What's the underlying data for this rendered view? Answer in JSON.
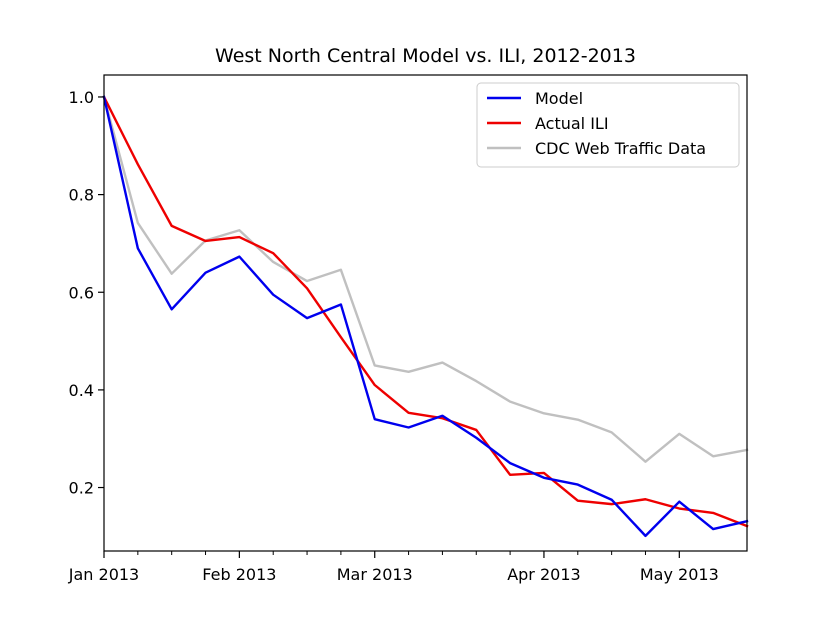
{
  "chart_data": {
    "type": "line",
    "title": "West North Central Model vs. ILI, 2012-2013",
    "xlabel": "",
    "ylabel": "",
    "ylim": [
      0.07,
      1.045
    ],
    "y_ticks": [
      0.2,
      0.4,
      0.6,
      0.8,
      1.0
    ],
    "y_tick_labels": [
      "0.2",
      "0.4",
      "0.6",
      "0.8",
      "1.0"
    ],
    "x_tick_labels": [
      "Jan 2013",
      "Feb 2013",
      "Mar 2013",
      "Apr 2013",
      "May 2013"
    ],
    "x_label_positions": [
      0,
      4,
      8,
      13,
      17
    ],
    "x_minor_ticks": [
      1,
      2,
      3,
      5,
      6,
      7,
      9,
      10,
      11,
      12,
      14,
      15,
      16
    ],
    "x": [
      0,
      1,
      2,
      3,
      4,
      5,
      6,
      7,
      8,
      9,
      10,
      11,
      12,
      13,
      14,
      15,
      16,
      17,
      18,
      19
    ],
    "xlim": [
      0,
      19
    ],
    "legend_position": "top-right",
    "series": [
      {
        "name": "Model",
        "color": "#0000ee",
        "values": [
          1.0,
          0.69,
          0.565,
          0.64,
          0.673,
          0.595,
          0.547,
          0.575,
          0.34,
          0.323,
          0.347,
          0.302,
          0.25,
          0.22,
          0.206,
          0.175,
          0.101,
          0.171,
          0.115,
          0.131
        ]
      },
      {
        "name": "Actual ILI",
        "color": "#ee0000",
        "values": [
          1.0,
          0.862,
          0.736,
          0.705,
          0.713,
          0.68,
          0.608,
          0.508,
          0.41,
          0.353,
          0.342,
          0.318,
          0.226,
          0.23,
          0.173,
          0.166,
          0.176,
          0.157,
          0.148,
          0.121
        ]
      },
      {
        "name": "CDC Web Traffic Data",
        "color": "#c0c0c0",
        "values": [
          1.0,
          0.742,
          0.638,
          0.706,
          0.727,
          0.662,
          0.623,
          0.646,
          0.45,
          0.437,
          0.456,
          0.418,
          0.376,
          0.352,
          0.339,
          0.313,
          0.253,
          0.31,
          0.264,
          0.277
        ]
      }
    ]
  }
}
